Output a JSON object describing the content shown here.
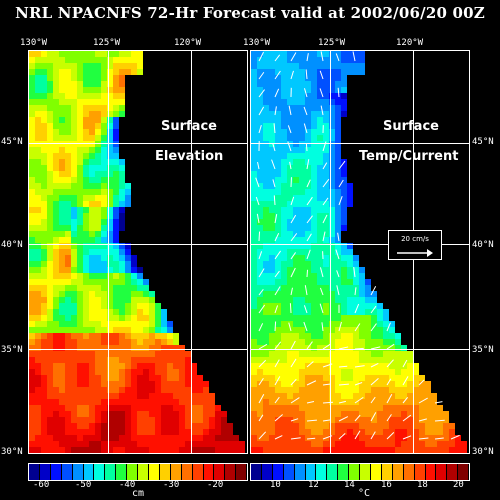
{
  "title": "NRL NPACNFS 72-Hr Forecast valid at 2002/06/20 00Z",
  "panels": {
    "left": {
      "label_line1": "Surface",
      "label_line2": "Elevation"
    },
    "right": {
      "label_line1": "Surface",
      "label_line2": "Temp/Current"
    }
  },
  "axes": {
    "lon_labels": [
      "130°W",
      "125°W",
      "120°W"
    ],
    "lat_labels": [
      "45°N",
      "40°N",
      "35°N",
      "30°N"
    ]
  },
  "scale_arrow": {
    "label": "20 cm/s"
  },
  "colorbars": {
    "elevation": {
      "ticks": [
        "-60",
        "-50",
        "-40",
        "-30",
        "-20"
      ],
      "unit": "cm",
      "range": [
        -60,
        -15
      ]
    },
    "temperature": {
      "ticks": [
        "10",
        "12",
        "14",
        "16",
        "18",
        "20"
      ],
      "unit": "°C",
      "range": [
        9,
        21
      ]
    }
  },
  "colors": {
    "palette": [
      "#000090",
      "#0000c8",
      "#0010ff",
      "#0050ff",
      "#0090ff",
      "#00c8ff",
      "#00ffe0",
      "#00ffa0",
      "#20ff40",
      "#80ff00",
      "#c8ff00",
      "#ffff00",
      "#ffd000",
      "#ffa000",
      "#ff7000",
      "#ff4000",
      "#ff1000",
      "#e00000",
      "#b00000",
      "#800000"
    ],
    "land": "#000000",
    "grid": "#ffffff"
  }
}
